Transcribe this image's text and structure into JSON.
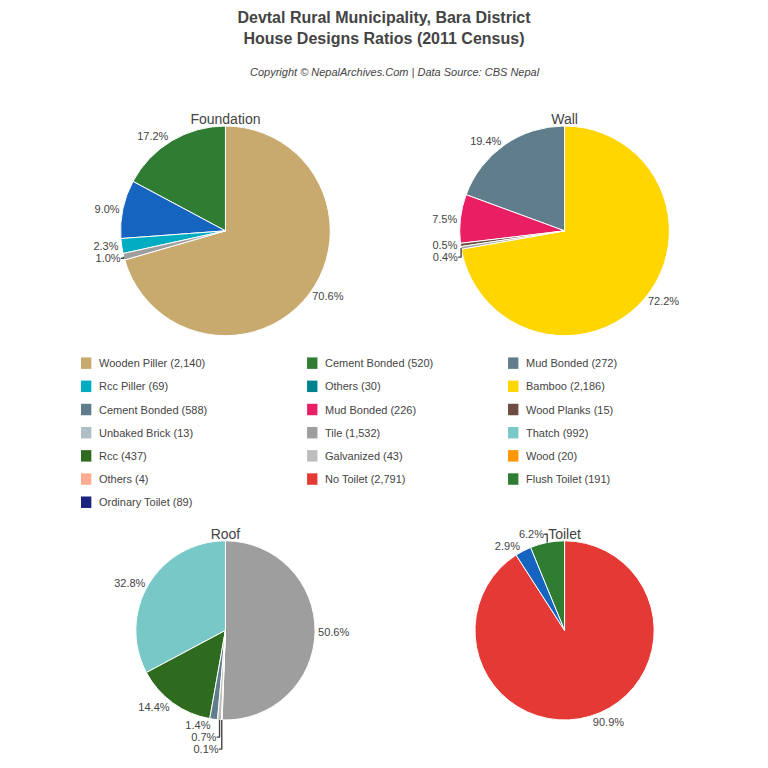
{
  "title": "Devtal Rural Municipality, Bara District",
  "subtitle": "House Designs Ratios (2011 Census)",
  "annotations": [
    "Copyright © NepalArchives.Com | Data Source: CBS Nepal"
  ],
  "legend_columns": [
    [
      {
        "name": "Wooden Piller (2,140)",
        "color": "#C8A96E"
      },
      {
        "name": "Rcc Piller (69)",
        "color": "#00ACC1"
      },
      {
        "name": "Cement Bonded (588)",
        "color": "#607D8B"
      },
      {
        "name": "Unbaked Brick (13)",
        "color": "#B0BEC5"
      },
      {
        "name": "Rcc (437)",
        "color": "#2E6B1E"
      },
      {
        "name": "Others (4)",
        "color": "#FFAB91"
      },
      {
        "name": "Ordinary Toilet (89)",
        "color": "#1A237E"
      }
    ],
    [
      {
        "name": "Cement Bonded (520)",
        "color": "#2E7D32"
      },
      {
        "name": "Others (30)",
        "color": "#00838F"
      },
      {
        "name": "Mud Bonded (226)",
        "color": "#E91E63"
      },
      {
        "name": "Tile (1,532)",
        "color": "#9E9E9E"
      },
      {
        "name": "Galvanized (43)",
        "color": "#BDBDBD"
      },
      {
        "name": "No Toilet (2,791)",
        "color": "#E53935"
      }
    ],
    [
      {
        "name": "Mud Bonded (272)",
        "color": "#607D8B"
      },
      {
        "name": "Bamboo (2,186)",
        "color": "#FFD600"
      },
      {
        "name": "Wood Planks (15)",
        "color": "#6D4C41"
      },
      {
        "name": "Thatch (992)",
        "color": "#78C8C8"
      },
      {
        "name": "Wood (20)",
        "color": "#FF9800"
      },
      {
        "name": "Flush Toilet (191)",
        "color": "#2E7D32"
      }
    ]
  ],
  "chart_data": [
    {
      "type": "pie",
      "title": "Foundation",
      "values": [
        70.6,
        17.2,
        9.0,
        2.3,
        1.0
      ],
      "value_labels": [
        "70.6%",
        "17.2%",
        "9.0%",
        "2.3%",
        "1.0%"
      ],
      "colors": [
        "#C8A96E",
        "#2E7D32",
        "#1565C0",
        "#00ACC1",
        "#9E9E9E"
      ],
      "data_labels": true
    },
    {
      "type": "pie",
      "title": "Wall",
      "values": [
        72.2,
        19.4,
        7.5,
        0.5,
        0.4
      ],
      "value_labels": [
        "72.2%",
        "19.4%",
        "7.5%",
        "0.5%",
        "0.4%"
      ],
      "colors": [
        "#FFD600",
        "#607D8B",
        "#E91E63",
        "#6D4C41",
        "#9E9E9E"
      ],
      "data_labels": true
    },
    {
      "type": "pie",
      "title": "Roof",
      "values": [
        50.6,
        32.8,
        14.4,
        1.4,
        0.7,
        0.1
      ],
      "value_labels": [
        "50.6%",
        "32.8%",
        "14.4%",
        "1.4%",
        "0.7%",
        "0.1%"
      ],
      "colors": [
        "#9E9E9E",
        "#78C8C8",
        "#2E6B1E",
        "#607D8B",
        "#BDBDBD",
        "#FF9800"
      ],
      "data_labels": true
    },
    {
      "type": "pie",
      "title": "Toilet",
      "values": [
        90.9,
        6.2,
        2.9
      ],
      "value_labels": [
        "90.9%",
        "6.2%",
        "2.9%"
      ],
      "colors": [
        "#E53935",
        "#2E7D32",
        "#1565C0"
      ],
      "data_labels": true
    }
  ]
}
